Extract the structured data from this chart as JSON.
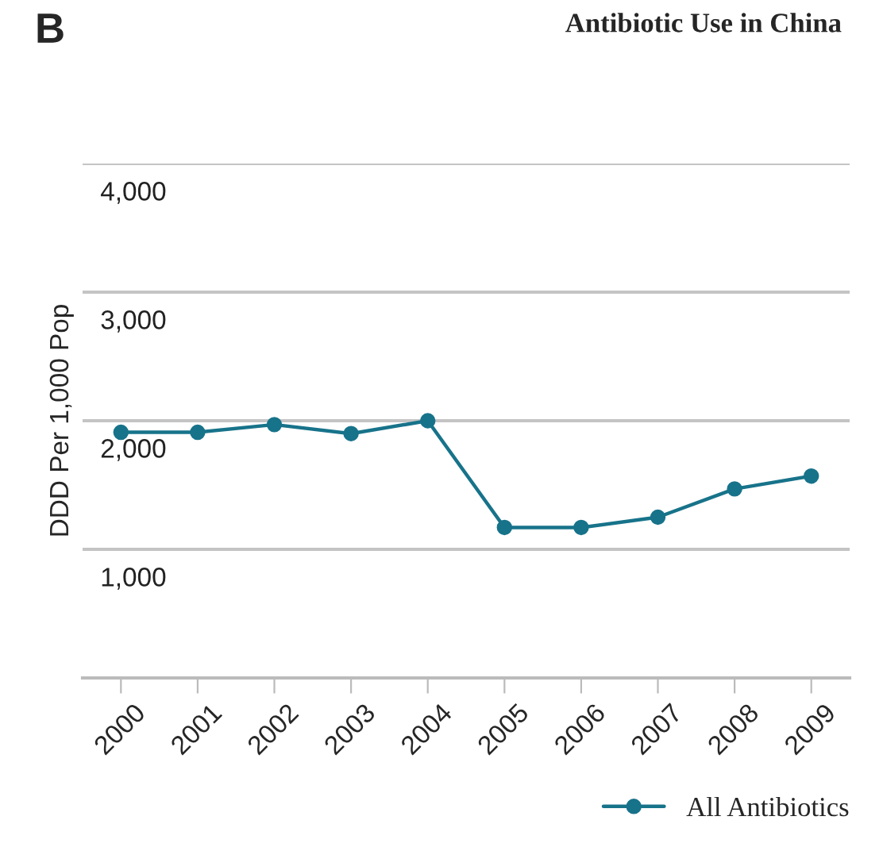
{
  "chart_data": {
    "type": "line",
    "title": "Antibiotic Use in China",
    "ylabel": "DDD Per 1,000 Pop",
    "annotations": [
      "B"
    ],
    "categories": [
      "2000",
      "2001",
      "2002",
      "2003",
      "2004",
      "2005",
      "2006",
      "2007",
      "2008",
      "2009"
    ],
    "series": [
      {
        "name": "All Antibiotics",
        "color": "#17738a",
        "values": [
          1910,
          1910,
          1970,
          1900,
          2000,
          1170,
          1170,
          1250,
          1470,
          1570
        ]
      }
    ],
    "ylim": [
      0,
      4000
    ],
    "yticks": [
      {
        "value": 1000,
        "label": "1,000"
      },
      {
        "value": 2000,
        "label": "2,000"
      },
      {
        "value": 3000,
        "label": "3,000"
      },
      {
        "value": 4000,
        "label": "4,000"
      }
    ],
    "grid": "y",
    "legend": "bottom",
    "marker": "circle",
    "line_style": "solid"
  }
}
